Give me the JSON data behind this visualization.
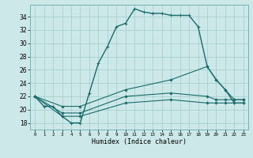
{
  "xlabel": "Humidex (Indice chaleur)",
  "ylabel": "",
  "background_color": "#cce8e8",
  "grid_color": "#a8d0d0",
  "line_color": "#1a6b6b",
  "xlim": [
    -0.5,
    23.5
  ],
  "ylim": [
    17,
    35.8
  ],
  "yticks": [
    18,
    20,
    22,
    24,
    26,
    28,
    30,
    32,
    34
  ],
  "xticks": [
    0,
    1,
    2,
    3,
    4,
    5,
    6,
    7,
    8,
    9,
    10,
    11,
    12,
    13,
    14,
    15,
    16,
    17,
    18,
    19,
    20,
    21,
    22,
    23
  ],
  "series": [
    {
      "x": [
        0,
        1,
        2,
        3,
        4,
        5,
        6,
        7,
        8,
        9,
        10,
        11,
        12,
        13,
        14,
        15,
        16,
        17,
        18,
        19,
        20,
        21,
        22,
        23
      ],
      "y": [
        22,
        20.5,
        20.5,
        19,
        18,
        18,
        22.5,
        27,
        29.5,
        32.5,
        33,
        35.2,
        34.7,
        34.5,
        34.5,
        34.2,
        34.2,
        34.2,
        32.5,
        26.5,
        24.5,
        23,
        21,
        21
      ],
      "style": "-",
      "marker": "+",
      "markersize": 3.5,
      "linewidth": 1.0
    },
    {
      "x": [
        0,
        3,
        5,
        10,
        15,
        19,
        20,
        21,
        22,
        23
      ],
      "y": [
        22,
        19,
        19,
        21,
        21.5,
        21,
        21,
        21,
        21,
        21
      ],
      "style": "-",
      "marker": "D",
      "markersize": 1.5,
      "linewidth": 0.8
    },
    {
      "x": [
        0,
        3,
        5,
        10,
        15,
        19,
        20,
        21,
        22,
        23
      ],
      "y": [
        22,
        19.5,
        19.5,
        22,
        22.5,
        22,
        21.5,
        21.5,
        21.5,
        21.5
      ],
      "style": "-",
      "marker": "D",
      "markersize": 1.5,
      "linewidth": 0.8
    },
    {
      "x": [
        0,
        3,
        5,
        10,
        15,
        19,
        20,
        21,
        22,
        23
      ],
      "y": [
        22,
        20.5,
        20.5,
        23,
        24.5,
        26.5,
        24.5,
        23,
        21.5,
        21.5
      ],
      "style": "-",
      "marker": "D",
      "markersize": 1.5,
      "linewidth": 0.8
    }
  ]
}
